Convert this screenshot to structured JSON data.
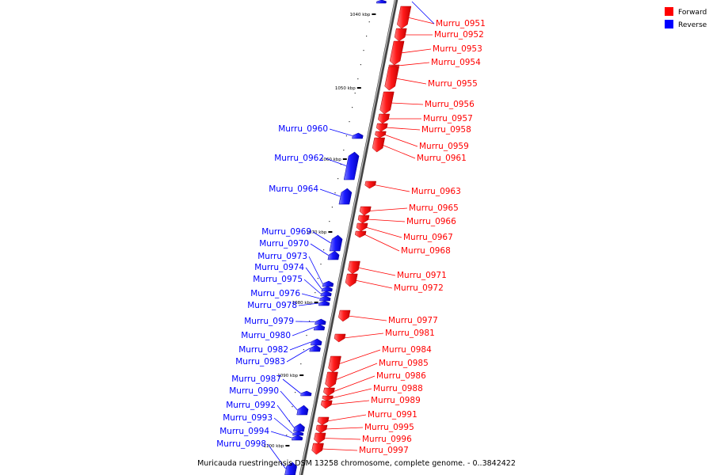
{
  "caption": "Muricauda ruestringensis DSM 13258 chromosome, complete genome. - 0..3842422",
  "legend": [
    {
      "label": "Forward",
      "color": "#ff0000"
    },
    {
      "label": "Reverse",
      "color": "#0000ff"
    }
  ],
  "kbp_ticks": [
    "1040 kbp",
    "1050 kbp",
    "1060 kbp",
    "1070 kbp",
    "1080 kbp",
    "1090 kbp",
    "1100 kbp"
  ],
  "forward_genes": [
    "Murru_0951",
    "Murru_0952",
    "Murru_0953",
    "Murru_0954",
    "Murru_0955",
    "Murru_0956",
    "Murru_0957",
    "Murru_0958",
    "Murru_0959",
    "Murru_0961",
    "Murru_0963",
    "Murru_0965",
    "Murru_0966",
    "Murru_0967",
    "Murru_0968",
    "Murru_0971",
    "Murru_0972",
    "Murru_0977",
    "Murru_0981",
    "Murru_0984",
    "Murru_0985",
    "Murru_0986",
    "Murru_0988",
    "Murru_0989",
    "Murru_0991",
    "Murru_0995",
    "Murru_0996",
    "Murru_0997"
  ],
  "reverse_genes": [
    "Murru_0960",
    "Murru_0962",
    "Murru_0964",
    "Murru_0969",
    "Murru_0970",
    "Murru_0973",
    "Murru_0974",
    "Murru_0975",
    "Murru_0976",
    "Murru_0978",
    "Murru_0979",
    "Murru_0980",
    "Murru_0982",
    "Murru_0983",
    "Murru_0987",
    "Murru_0990",
    "Murru_0992",
    "Murru_0993",
    "Murru_0994",
    "Murru_0998"
  ]
}
